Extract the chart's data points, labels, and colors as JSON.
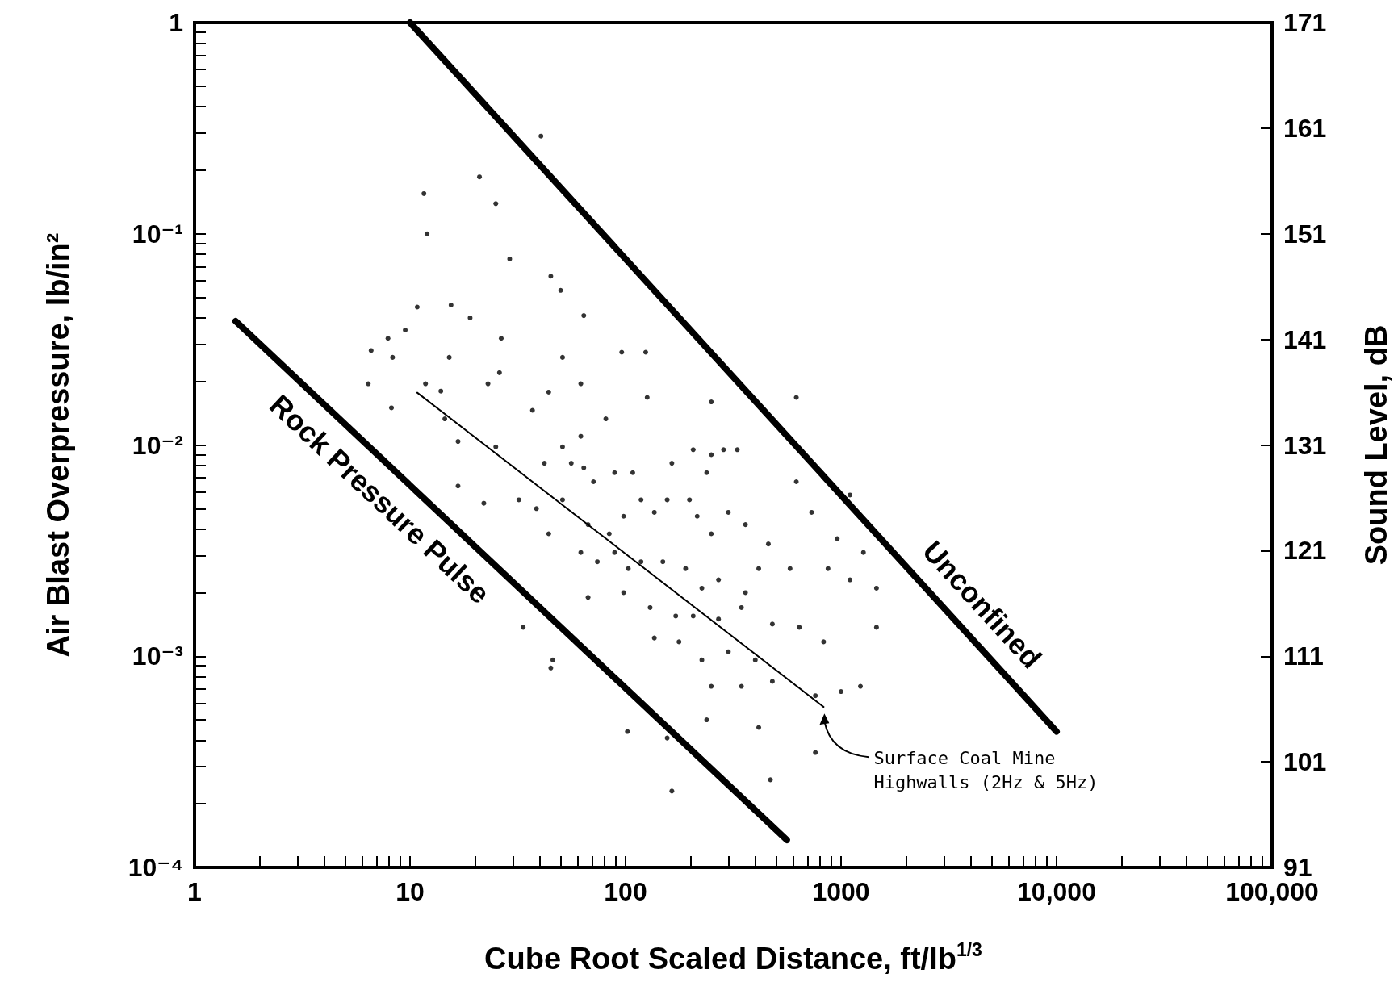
{
  "chart_data": {
    "type": "scatter",
    "xlabel": "Cube Root Scaled Distance, ft/lb$^{1/3}$",
    "ylabel": "Air Blast Overpressure, lb/in²",
    "y2label": "Sound Level, dB",
    "log": "xy",
    "grid": false,
    "xlim": [
      1,
      100000
    ],
    "ylim": [
      0.0001,
      1
    ],
    "y2lim": [
      91,
      171
    ],
    "xticks": [
      1,
      {
        "value": 2,
        "label": null
      },
      {
        "value": 3,
        "label": null
      },
      {
        "value": 4,
        "label": null
      },
      {
        "value": 5,
        "label": null
      },
      {
        "value": 6,
        "label": null
      },
      {
        "value": 7,
        "label": null
      },
      {
        "value": 8,
        "label": null
      },
      {
        "value": 9,
        "label": null
      },
      10,
      {
        "value": 20,
        "label": null
      },
      {
        "value": 30,
        "label": null
      },
      {
        "value": 40,
        "label": null
      },
      {
        "value": 50,
        "label": null
      },
      {
        "value": 60,
        "label": null
      },
      {
        "value": 70,
        "label": null
      },
      {
        "value": 80,
        "label": null
      },
      {
        "value": 90,
        "label": null
      },
      100,
      {
        "value": 200,
        "label": null
      },
      {
        "value": 300,
        "label": null
      },
      {
        "value": 400,
        "label": null
      },
      {
        "value": 500,
        "label": null
      },
      {
        "value": 600,
        "label": null
      },
      {
        "value": 700,
        "label": null
      },
      {
        "value": 800,
        "label": null
      },
      {
        "value": 900,
        "label": null
      },
      1000,
      {
        "value": 2000,
        "label": null
      },
      {
        "value": 3000,
        "label": null
      },
      {
        "value": 4000,
        "label": null
      },
      {
        "value": 5000,
        "label": null
      },
      {
        "value": 6000,
        "label": null
      },
      {
        "value": 7000,
        "label": null
      },
      {
        "value": 8000,
        "label": null
      },
      {
        "value": 9000,
        "label": null
      },
      {
        "value": 10000,
        "label": "10,000"
      },
      {
        "value": 20000,
        "label": null
      },
      {
        "value": 30000,
        "label": null
      },
      {
        "value": 40000,
        "label": null
      },
      {
        "value": 50000,
        "label": null
      },
      {
        "value": 60000,
        "label": null
      },
      {
        "value": 70000,
        "label": null
      },
      {
        "value": 80000,
        "label": null
      },
      {
        "value": 90000,
        "label": null
      },
      {
        "value": 100000,
        "label": "100,000"
      }
    ],
    "yticks": [
      {
        "value": 0.0001,
        "label": "10⁻⁴"
      },
      {
        "value": 0.0002,
        "label": null
      },
      {
        "value": 0.0003,
        "label": null
      },
      {
        "value": 0.0004,
        "label": null
      },
      {
        "value": 0.0005,
        "label": null
      },
      {
        "value": 0.0006,
        "label": null
      },
      {
        "value": 0.0007,
        "label": null
      },
      {
        "value": 0.0008,
        "label": null
      },
      {
        "value": 0.0009,
        "label": null
      },
      {
        "value": 0.001,
        "label": "10⁻³"
      },
      {
        "value": 0.002,
        "label": null
      },
      {
        "value": 0.003,
        "label": null
      },
      {
        "value": 0.004,
        "label": null
      },
      {
        "value": 0.005,
        "label": null
      },
      {
        "value": 0.006,
        "label": null
      },
      {
        "value": 0.007,
        "label": null
      },
      {
        "value": 0.008,
        "label": null
      },
      {
        "value": 0.009,
        "label": null
      },
      {
        "value": 0.01,
        "label": "10⁻²"
      },
      {
        "value": 0.02,
        "label": null
      },
      {
        "value": 0.03,
        "label": null
      },
      {
        "value": 0.04,
        "label": null
      },
      {
        "value": 0.05,
        "label": null
      },
      {
        "value": 0.06,
        "label": null
      },
      {
        "value": 0.07,
        "label": null
      },
      {
        "value": 0.08,
        "label": null
      },
      {
        "value": 0.09,
        "label": null
      },
      {
        "value": 0.1,
        "label": "10⁻¹"
      },
      {
        "value": 0.2,
        "label": null
      },
      {
        "value": 0.3,
        "label": null
      },
      {
        "value": 0.4,
        "label": null
      },
      {
        "value": 0.5,
        "label": null
      },
      {
        "value": 0.6,
        "label": null
      },
      {
        "value": 0.7,
        "label": null
      },
      {
        "value": 0.8,
        "label": null
      },
      {
        "value": 0.9,
        "label": null
      },
      1
    ],
    "y2ticks": [
      91,
      101,
      111,
      121,
      131,
      141,
      151,
      161,
      171
    ],
    "series": [
      {
        "color": "#000000",
        "marker": "circle",
        "x": [
          40.5,
          21,
          25,
          11.6,
          12,
          29,
          45,
          50,
          10.8,
          15.5,
          19,
          64,
          6.6,
          7.9,
          9.5,
          26.5,
          6.4,
          8.3,
          11.8,
          13.9,
          15.2,
          23,
          26,
          37,
          44,
          62,
          51,
          96,
          124,
          81,
          126,
          250,
          620,
          8.2,
          14.5,
          16.7,
          25,
          42,
          51,
          56,
          64,
          62,
          71,
          89,
          108,
          164,
          156,
          206,
          250,
          285,
          330,
          238,
          16.7,
          22,
          32,
          38.6,
          51,
          67,
          84,
          98,
          118,
          136,
          198,
          215,
          250,
          300,
          360,
          460,
          620,
          1100,
          730,
          960,
          1270,
          44,
          62,
          74,
          89,
          103,
          118,
          149,
          190,
          226,
          270,
          360,
          415,
          580,
          870,
          1100,
          1460,
          67,
          98,
          130,
          171,
          206,
          270,
          345,
          480,
          640,
          830,
          1460,
          136,
          177,
          226,
          300,
          400,
          46,
          45,
          33.5,
          250,
          345,
          480,
          760,
          1000,
          1230,
          102,
          156,
          238,
          415,
          760,
          164,
          470
        ],
        "values": [
          0.29,
          0.186,
          0.139,
          0.155,
          0.1,
          0.076,
          0.063,
          0.054,
          0.045,
          0.046,
          0.04,
          0.041,
          0.028,
          0.032,
          0.035,
          0.032,
          0.0195,
          0.026,
          0.0195,
          0.018,
          0.026,
          0.0195,
          0.022,
          0.0146,
          0.0178,
          0.0195,
          0.026,
          0.0275,
          0.0275,
          0.0133,
          0.0168,
          0.016,
          0.0168,
          0.015,
          0.0133,
          0.0104,
          0.0098,
          0.0082,
          0.0098,
          0.0082,
          0.0078,
          0.011,
          0.0067,
          0.0074,
          0.0074,
          0.0082,
          0.0055,
          0.0095,
          0.009,
          0.0095,
          0.0095,
          0.0074,
          0.0064,
          0.0053,
          0.0055,
          0.005,
          0.0055,
          0.0042,
          0.0038,
          0.0046,
          0.0055,
          0.0048,
          0.0055,
          0.0046,
          0.0038,
          0.0048,
          0.0042,
          0.0034,
          0.0067,
          0.0058,
          0.0048,
          0.0036,
          0.0031,
          0.0038,
          0.0031,
          0.0028,
          0.0031,
          0.0026,
          0.0028,
          0.0028,
          0.0026,
          0.0021,
          0.0023,
          0.002,
          0.0026,
          0.0026,
          0.0026,
          0.0023,
          0.0021,
          0.0019,
          0.002,
          0.0017,
          0.00155,
          0.00155,
          0.0015,
          0.0017,
          0.00142,
          0.00137,
          0.00117,
          0.00137,
          0.00122,
          0.00117,
          0.00096,
          0.00105,
          0.00096,
          0.00096,
          0.00088,
          0.00137,
          0.00072,
          0.00072,
          0.00076,
          0.00065,
          0.00068,
          0.00072,
          0.00044,
          0.00041,
          0.0005,
          0.00046,
          0.00035,
          0.00023,
          0.00026
        ]
      },
      {
        "type": "line",
        "name": "Unconfined",
        "color": "#000000",
        "marker": "none",
        "line_style": "solid",
        "x": [
          10,
          10000
        ],
        "values": [
          1,
          0.00044
        ]
      },
      {
        "type": "line",
        "name": "Rock Pressure Pulse",
        "color": "#000000",
        "marker": "none",
        "line_style": "solid",
        "x": [
          1.55,
          560
        ],
        "values": [
          0.0386,
          0.000135
        ]
      },
      {
        "type": "line",
        "color": "#000000",
        "marker": "none",
        "line_style": "solid",
        "x": [
          10.8,
          830
        ],
        "values": [
          0.0177,
          0.000575
        ]
      }
    ],
    "annotations": [
      "Surface Coal Mine\nHighwalls (2Hz & 5Hz)"
    ]
  }
}
